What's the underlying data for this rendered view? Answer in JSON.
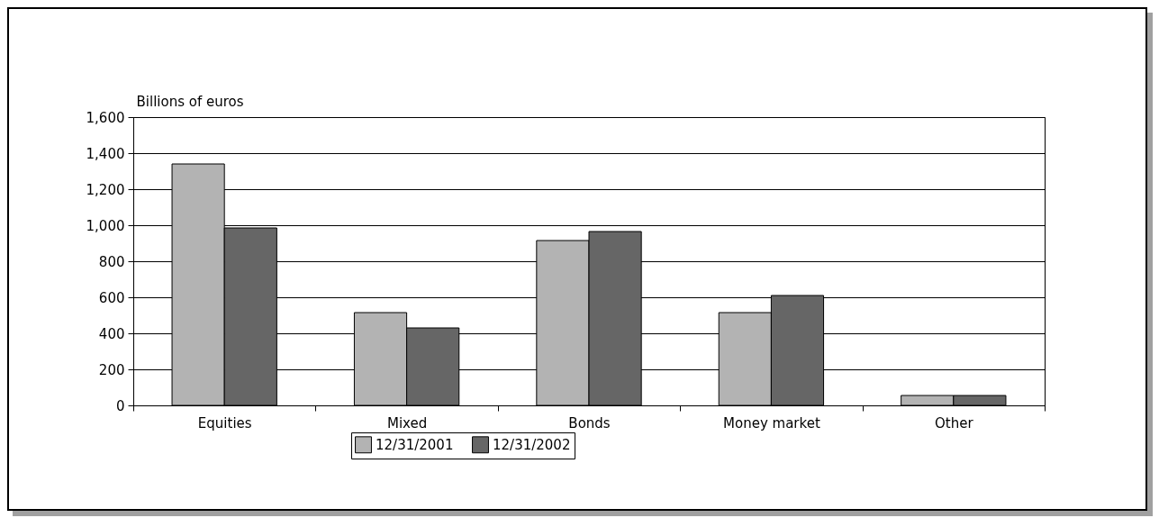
{
  "chart_data": {
    "type": "bar",
    "ylabel": "Billions of euros",
    "categories": [
      "Equities",
      "Mixed",
      "Bonds",
      "Money market",
      "Other"
    ],
    "series": [
      {
        "name": "12/31/2001",
        "color": "#b3b3b3",
        "values": [
          1340,
          515,
          915,
          515,
          55
        ]
      },
      {
        "name": "12/31/2002",
        "color": "#666666",
        "values": [
          985,
          430,
          965,
          610,
          55
        ]
      }
    ],
    "ylim": [
      0,
      1600
    ],
    "yticks": [
      0,
      200,
      400,
      600,
      800,
      {
        "value": 1000,
        "label": "1,000"
      },
      {
        "value": 1200,
        "label": "1,200"
      },
      {
        "value": 1400,
        "label": "1,400"
      },
      {
        "value": 1600,
        "label": "1,600"
      }
    ],
    "grid": "y",
    "legend": "bottom"
  }
}
